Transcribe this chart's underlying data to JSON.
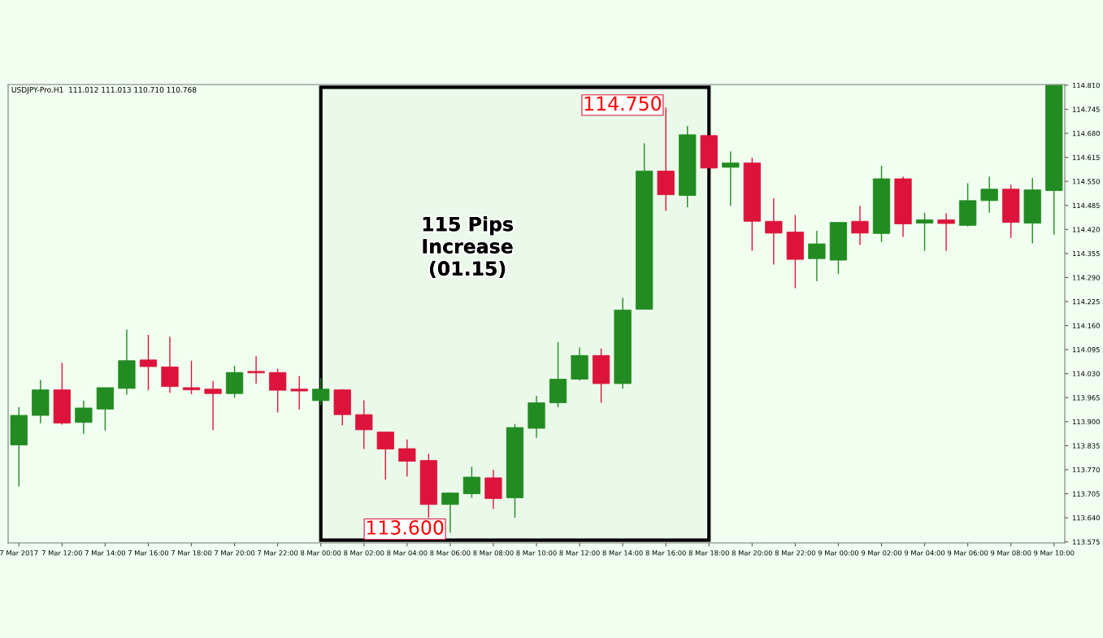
{
  "chart_data": {
    "type": "candlestick",
    "annotations": [
      "USDJPY-Pro.H1  111.012 111.013 110.710 110.768",
      "115 Pips\nIncrease\n(01.15)",
      "113.600",
      "114.750"
    ],
    "x": [
      "2017-03-07T10:00",
      "2017-03-07T11:00",
      "2017-03-07T12:00",
      "2017-03-07T13:00",
      "2017-03-07T14:00",
      "2017-03-07T15:00",
      "2017-03-07T16:00",
      "2017-03-07T17:00",
      "2017-03-07T18:00",
      "2017-03-07T19:00",
      "2017-03-07T20:00",
      "2017-03-07T21:00",
      "2017-03-07T22:00",
      "2017-03-07T23:00",
      "2017-03-08T00:00",
      "2017-03-08T01:00",
      "2017-03-08T02:00",
      "2017-03-08T03:00",
      "2017-03-08T04:00",
      "2017-03-08T05:00",
      "2017-03-08T06:00",
      "2017-03-08T07:00",
      "2017-03-08T08:00",
      "2017-03-08T09:00",
      "2017-03-08T10:00",
      "2017-03-08T11:00",
      "2017-03-08T12:00",
      "2017-03-08T13:00",
      "2017-03-08T14:00",
      "2017-03-08T15:00",
      "2017-03-08T16:00",
      "2017-03-08T17:00",
      "2017-03-08T18:00",
      "2017-03-08T19:00",
      "2017-03-08T20:00",
      "2017-03-08T21:00",
      "2017-03-08T22:00",
      "2017-03-08T23:00",
      "2017-03-09T00:00",
      "2017-03-09T01:00",
      "2017-03-09T02:00",
      "2017-03-09T03:00",
      "2017-03-09T04:00",
      "2017-03-09T05:00",
      "2017-03-09T06:00",
      "2017-03-09T07:00",
      "2017-03-09T08:00",
      "2017-03-09T09:00",
      "2017-03-09T10:00"
    ],
    "ohlc": [
      [
        113.837,
        113.939,
        113.725,
        113.917
      ],
      [
        113.917,
        114.013,
        113.896,
        113.986
      ],
      [
        113.986,
        114.059,
        113.892,
        113.896
      ],
      [
        113.898,
        113.957,
        113.867,
        113.937
      ],
      [
        113.934,
        113.992,
        113.876,
        113.992
      ],
      [
        113.99,
        114.149,
        113.973,
        114.065
      ],
      [
        114.067,
        114.135,
        113.985,
        114.049
      ],
      [
        114.048,
        114.13,
        113.978,
        113.995
      ],
      [
        113.992,
        114.065,
        113.974,
        113.986
      ],
      [
        113.988,
        114.01,
        113.877,
        113.976
      ],
      [
        113.976,
        114.051,
        113.965,
        114.033
      ],
      [
        114.036,
        114.077,
        114.003,
        114.032
      ],
      [
        114.033,
        114.043,
        113.925,
        113.985
      ],
      [
        113.988,
        114.023,
        113.933,
        113.983
      ],
      [
        113.957,
        114.018,
        113.945,
        113.988
      ],
      [
        113.986,
        113.988,
        113.89,
        113.919
      ],
      [
        113.919,
        113.958,
        113.826,
        113.878
      ],
      [
        113.872,
        113.872,
        113.743,
        113.826
      ],
      [
        113.827,
        113.852,
        113.752,
        113.793
      ],
      [
        113.795,
        113.813,
        113.64,
        113.676
      ],
      [
        113.676,
        113.709,
        113.6,
        113.707
      ],
      [
        113.705,
        113.778,
        113.694,
        113.75
      ],
      [
        113.748,
        113.77,
        113.664,
        113.692
      ],
      [
        113.694,
        113.894,
        113.64,
        113.884
      ],
      [
        113.882,
        113.97,
        113.856,
        113.951
      ],
      [
        113.951,
        114.115,
        113.939,
        114.015
      ],
      [
        114.015,
        114.101,
        114.011,
        114.079
      ],
      [
        114.079,
        114.098,
        113.951,
        114.003
      ],
      [
        114.003,
        114.235,
        113.989,
        114.202
      ],
      [
        114.204,
        114.653,
        114.204,
        114.578
      ],
      [
        114.578,
        114.75,
        114.47,
        114.514
      ],
      [
        114.512,
        114.7,
        114.48,
        114.676
      ],
      [
        114.674,
        114.674,
        114.586,
        114.586
      ],
      [
        114.588,
        114.631,
        114.484,
        114.6
      ],
      [
        114.6,
        114.614,
        114.362,
        114.442
      ],
      [
        114.442,
        114.504,
        114.325,
        114.41
      ],
      [
        114.413,
        114.459,
        114.261,
        114.339
      ],
      [
        114.341,
        114.416,
        114.28,
        114.381
      ],
      [
        114.337,
        114.439,
        114.3,
        114.439
      ],
      [
        114.442,
        114.484,
        114.378,
        114.41
      ],
      [
        114.409,
        114.592,
        114.386,
        114.557
      ],
      [
        114.557,
        114.563,
        114.4,
        114.435
      ],
      [
        114.437,
        114.465,
        114.362,
        114.446
      ],
      [
        114.446,
        114.464,
        114.362,
        114.436
      ],
      [
        114.431,
        114.545,
        114.428,
        114.498
      ],
      [
        114.498,
        114.563,
        114.465,
        114.529
      ],
      [
        114.529,
        114.541,
        114.397,
        114.439
      ],
      [
        114.437,
        114.559,
        114.382,
        114.527
      ],
      [
        114.525,
        114.81,
        114.406,
        114.81
      ]
    ],
    "colors": [
      "#228b22",
      "#228b22",
      "#dc143c",
      "#228b22",
      "#228b22",
      "#228b22",
      "#dc143c",
      "#dc143c",
      "#dc143c",
      "#dc143c",
      "#228b22",
      "#dc143c",
      "#dc143c",
      "#dc143c",
      "#228b22",
      "#dc143c",
      "#dc143c",
      "#dc143c",
      "#dc143c",
      "#dc143c",
      "#228b22",
      "#228b22",
      "#dc143c",
      "#228b22",
      "#228b22",
      "#228b22",
      "#228b22",
      "#dc143c",
      "#228b22",
      "#228b22",
      "#dc143c",
      "#228b22",
      "#dc143c",
      "#228b22",
      "#dc143c",
      "#dc143c",
      "#dc143c",
      "#228b22",
      "#228b22",
      "#dc143c",
      "#228b22",
      "#dc143c",
      "#228b22",
      "#dc143c",
      "#228b22",
      "#228b22",
      "#dc143c",
      "#228b22",
      "#228b22"
    ],
    "xlim": [
      "2017-03-07T09:30",
      "2017-03-09T10:30"
    ],
    "xticks": [
      {
        "value": "2017-03-07T10:00",
        "label": "7 Mar 2017"
      },
      {
        "value": "2017-03-07T12:00",
        "label": "7 Mar 12:00"
      },
      {
        "value": "2017-03-07T14:00",
        "label": "7 Mar 14:00"
      },
      {
        "value": "2017-03-07T16:00",
        "label": "7 Mar 16:00"
      },
      {
        "value": "2017-03-07T18:00",
        "label": "7 Mar 18:00"
      },
      {
        "value": "2017-03-07T20:00",
        "label": "7 Mar 20:00"
      },
      {
        "value": "2017-03-07T22:00",
        "label": "7 Mar 22:00"
      },
      {
        "value": "2017-03-08T00:00",
        "label": "8 Mar 00:00"
      },
      {
        "value": "2017-03-08T02:00",
        "label": "8 Mar 02:00"
      },
      {
        "value": "2017-03-08T04:00",
        "label": "8 Mar 04:00"
      },
      {
        "value": "2017-03-08T06:00",
        "label": "8 Mar 06:00"
      },
      {
        "value": "2017-03-08T08:00",
        "label": "8 Mar 08:00"
      },
      {
        "value": "2017-03-08T10:00",
        "label": "8 Mar 10:00"
      },
      {
        "value": "2017-03-08T12:00",
        "label": "8 Mar 12:00"
      },
      {
        "value": "2017-03-08T14:00",
        "label": "8 Mar 14:00"
      },
      {
        "value": "2017-03-08T16:00",
        "label": "8 Mar 16:00"
      },
      {
        "value": "2017-03-08T18:00",
        "label": "8 Mar 18:00"
      },
      {
        "value": "2017-03-08T20:00",
        "label": "8 Mar 20:00"
      },
      {
        "value": "2017-03-08T22:00",
        "label": "8 Mar 22:00"
      },
      {
        "value": "2017-03-09T00:00",
        "label": "9 Mar 00:00"
      },
      {
        "value": "2017-03-09T02:00",
        "label": "9 Mar 02:00"
      },
      {
        "value": "2017-03-09T04:00",
        "label": "9 Mar 04:00"
      },
      {
        "value": "2017-03-09T06:00",
        "label": "9 Mar 06:00"
      },
      {
        "value": "2017-03-09T08:00",
        "label": "9 Mar 08:00"
      },
      {
        "value": "2017-03-09T10:00",
        "label": "9 Mar 10:00"
      }
    ],
    "ylim": [
      113.572,
      114.812
    ],
    "yticks": [
      113.575,
      {
        "value": 113.64,
        "label": "113.640"
      },
      113.705,
      {
        "value": 113.77,
        "label": "113.770"
      },
      113.835,
      {
        "value": 113.9,
        "label": "113.900"
      },
      113.965,
      {
        "value": 114.03,
        "label": "114.030"
      },
      114.095,
      {
        "value": 114.16,
        "label": "114.160"
      },
      114.225,
      {
        "value": 114.29,
        "label": "114.290"
      },
      114.355,
      {
        "value": 114.42,
        "label": "114.420"
      },
      114.485,
      {
        "value": 114.55,
        "label": "114.550"
      },
      114.615,
      {
        "value": 114.68,
        "label": "114.680"
      },
      114.745,
      {
        "value": 114.81,
        "label": "114.810"
      }
    ],
    "bands": [
      {
        "axis": "x",
        "from": "2017-03-08T00:00",
        "to": "2017-03-08T18:00",
        "color": "#000000"
      }
    ],
    "grid": false
  }
}
